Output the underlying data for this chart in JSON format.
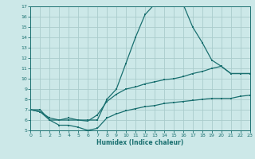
{
  "xlabel": "Humidex (Indice chaleur)",
  "bg_color": "#cce8e8",
  "grid_color": "#aacccc",
  "line_color": "#1a7070",
  "x_min": 0,
  "x_max": 23,
  "y_min": 5,
  "y_max": 17,
  "line1_x": [
    0,
    1,
    2,
    3,
    4,
    5,
    6,
    7,
    8,
    9,
    10,
    11,
    12,
    13,
    14,
    15,
    16,
    17,
    18,
    19,
    20,
    21,
    22,
    23
  ],
  "line1_y": [
    7.0,
    7.0,
    6.0,
    6.0,
    6.0,
    6.0,
    6.0,
    6.0,
    8.0,
    9.0,
    11.5,
    14.0,
    16.2,
    17.2,
    17.2,
    17.0,
    17.2,
    15.0,
    13.5,
    11.8,
    11.2,
    10.5,
    10.5,
    10.5
  ],
  "line2_x": [
    0,
    1,
    2,
    3,
    4,
    5,
    6,
    7,
    8,
    9,
    10,
    11,
    12,
    13,
    14,
    15,
    16,
    17,
    18,
    19,
    20,
    21,
    22,
    23
  ],
  "line2_y": [
    7.0,
    6.8,
    6.2,
    6.0,
    6.2,
    6.0,
    5.9,
    6.5,
    7.8,
    8.5,
    9.0,
    9.2,
    9.5,
    9.7,
    9.9,
    10.0,
    10.2,
    10.5,
    10.7,
    11.0,
    11.2,
    10.5,
    10.5,
    10.5
  ],
  "line3_x": [
    0,
    1,
    2,
    3,
    4,
    5,
    6,
    7,
    8,
    9,
    10,
    11,
    12,
    13,
    14,
    15,
    16,
    17,
    18,
    19,
    20,
    21,
    22,
    23
  ],
  "line3_y": [
    7.0,
    6.8,
    6.0,
    5.5,
    5.5,
    5.3,
    5.0,
    5.2,
    6.2,
    6.6,
    6.9,
    7.1,
    7.3,
    7.4,
    7.6,
    7.7,
    7.8,
    7.9,
    8.0,
    8.1,
    8.1,
    8.1,
    8.3,
    8.4
  ]
}
